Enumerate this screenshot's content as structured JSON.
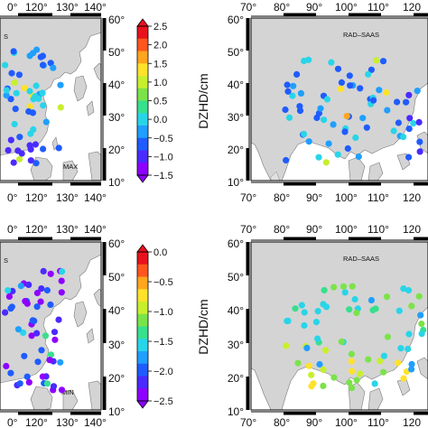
{
  "colors": {
    "palette": [
      "#8e00ff",
      "#4a2bff",
      "#1f5cff",
      "#1f9fff",
      "#28d5e8",
      "#37e08d",
      "#7be34a",
      "#c8ef2d",
      "#ffe22a",
      "#ffa51e",
      "#ff561d",
      "#e8121d"
    ]
  },
  "left_maps": {
    "x_ticks": [
      "0°",
      "120°",
      "130°",
      "140°"
    ],
    "y_ticks": [
      "10°",
      "20°",
      "30°",
      "40°",
      "50°",
      "60°"
    ],
    "partial_label": "S"
  },
  "right_maps": {
    "x_ticks": [
      "70°",
      "80°",
      "90°",
      "100°",
      "110°",
      "120"
    ],
    "y_ticks": [
      "10°",
      "20°",
      "30°",
      "40°",
      "50°",
      "60°"
    ]
  },
  "panels": [
    {
      "id": "top-left",
      "label": "MAX",
      "stat": "max"
    },
    {
      "id": "top-right",
      "label": "RAD–SAAS",
      "stat": "max"
    },
    {
      "id": "bottom-left",
      "label": "MIN",
      "stat": "min"
    },
    {
      "id": "bottom-right",
      "label": "RAD–SAAS",
      "stat": "min"
    }
  ],
  "colorbars": [
    {
      "id": "max",
      "title": "DZHD/cm",
      "range": [
        -1.5,
        2.5
      ],
      "tick_labels": [
        "2.5",
        "2.0",
        "1.5",
        "1.0",
        "0.5",
        "0.0",
        "−0.5",
        "−1.0",
        "−1.5"
      ]
    },
    {
      "id": "min",
      "title": "DZHD/cm",
      "range": [
        -2.5,
        0.0
      ],
      "tick_labels": [
        "0.0",
        "−0.5",
        "−1.0",
        "−1.5",
        "−2.0",
        "−2.5"
      ]
    }
  ]
}
